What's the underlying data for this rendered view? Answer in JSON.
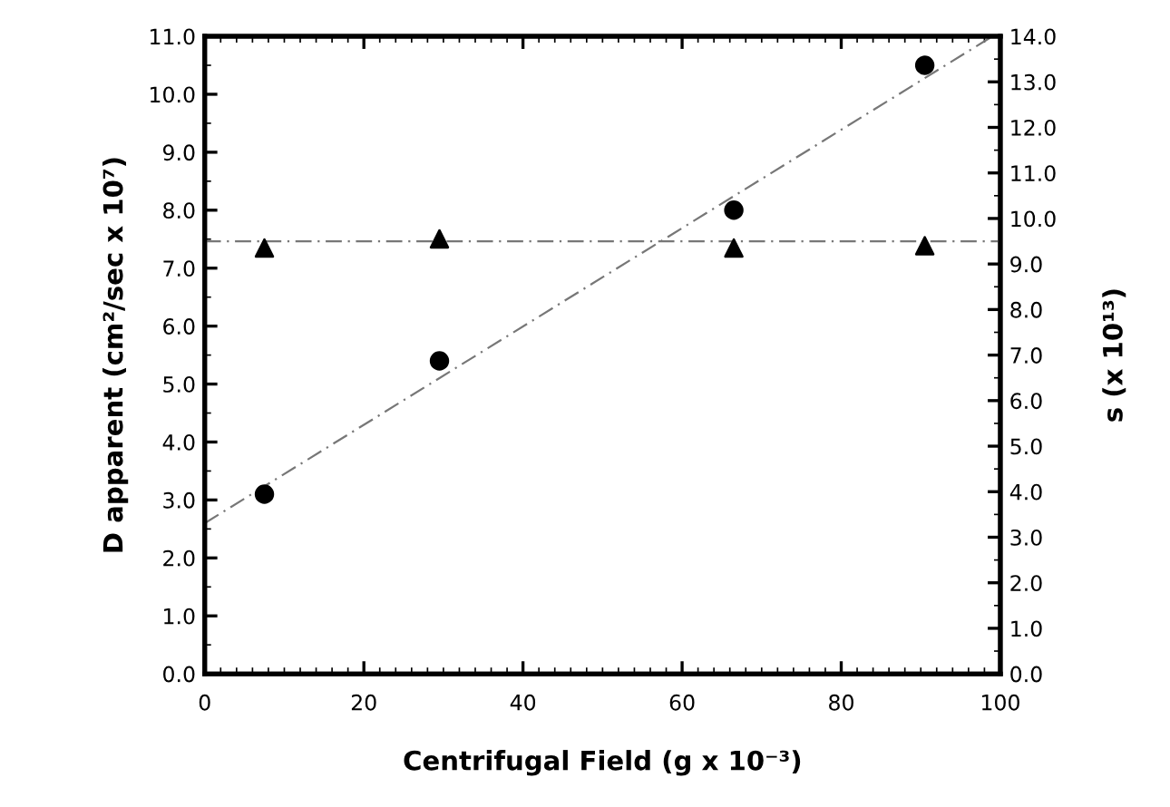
{
  "chart_data": {
    "type": "scatter",
    "xlabel": "Centrifugal Field (g x 10⁻³)",
    "ylabel": "D apparent (cm²/sec x 10⁷)",
    "y2label": "s (x 10¹³)",
    "xlim": [
      0,
      100
    ],
    "xticks": [
      0,
      20,
      40,
      60,
      80,
      100
    ],
    "ylim": [
      0,
      11
    ],
    "yticks": [
      {
        "value": 0,
        "label": "0.0"
      },
      {
        "value": 1,
        "label": "1.0"
      },
      {
        "value": 2,
        "label": "2.0"
      },
      {
        "value": 3,
        "label": "3.0"
      },
      {
        "value": 4,
        "label": "4.0"
      },
      {
        "value": 5,
        "label": "5.0"
      },
      {
        "value": 6,
        "label": "6.0"
      },
      {
        "value": 7,
        "label": "7.0"
      },
      {
        "value": 8,
        "label": "8.0"
      },
      {
        "value": 9,
        "label": "9.0"
      },
      {
        "value": 10,
        "label": "10.0"
      },
      {
        "value": 11,
        "label": "11.0"
      }
    ],
    "y2lim": [
      0,
      14
    ],
    "y2ticks": [
      {
        "value": 0,
        "label": "0.0"
      },
      {
        "value": 1,
        "label": "1.0"
      },
      {
        "value": 2,
        "label": "2.0"
      },
      {
        "value": 3,
        "label": "3.0"
      },
      {
        "value": 4,
        "label": "4.0"
      },
      {
        "value": 5,
        "label": "5.0"
      },
      {
        "value": 6,
        "label": "6.0"
      },
      {
        "value": 7,
        "label": "7.0"
      },
      {
        "value": 8,
        "label": "8.0"
      },
      {
        "value": 9,
        "label": "9.0"
      },
      {
        "value": 10,
        "label": "10.0"
      },
      {
        "value": 11,
        "label": "11.0"
      },
      {
        "value": 12,
        "label": "12.0"
      },
      {
        "value": 13,
        "label": "13.0"
      },
      {
        "value": 14,
        "label": "14.0"
      }
    ],
    "grid": false,
    "legend": false,
    "series": [
      {
        "marker": "circle",
        "color": "#000000",
        "x": [
          7.5,
          29.5,
          66.5,
          90.5
        ],
        "values": [
          3.1,
          5.4,
          8.0,
          10.5
        ]
      },
      {
        "marker": "triangle",
        "color": "#000000",
        "axis": "y2",
        "x": [
          7.5,
          29.5,
          66.5,
          90.5
        ],
        "values": [
          9.35,
          9.55,
          9.35,
          9.4
        ]
      },
      {
        "type": "line",
        "marker": "none",
        "line_style": "dashed",
        "color": "#777777",
        "x": [
          0,
          99
        ],
        "values": [
          2.6,
          11.0
        ]
      }
    ],
    "ref_lines": [
      {
        "axis": "y2",
        "value": 9.5,
        "color": "#777777",
        "line_style": "dashed"
      }
    ]
  }
}
